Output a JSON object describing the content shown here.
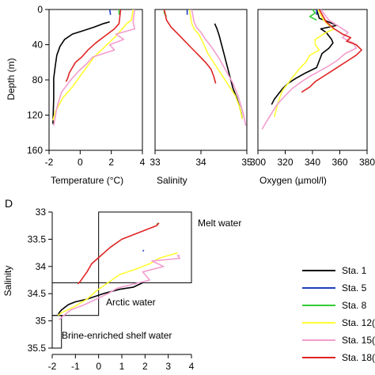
{
  "colors": {
    "sta1": "#000000",
    "sta5": "#1f3fbf",
    "sta8": "#33cc33",
    "sta120": "#ffff33",
    "sta150": "#f29ecf",
    "sta180": "#e02424"
  },
  "chart_data": [
    {
      "type": "line",
      "panel": "temperature",
      "xlabel": "Temperature (°C)",
      "ylabel": "Depth (m)",
      "xlim": [
        -2,
        4
      ],
      "ylim": [
        0,
        160
      ],
      "y_inverted": true,
      "xticks": [
        "-2",
        "0",
        "2",
        "4"
      ],
      "yticks": [
        "0",
        "40",
        "80",
        "120",
        "160"
      ],
      "series": [
        {
          "key": "sta1",
          "x": [
            1.9,
            1.5,
            0.9,
            0.2,
            -0.5,
            -1.0,
            -1.3,
            -1.5,
            -1.6,
            -1.7,
            -1.7,
            -1.75
          ],
          "y": [
            14,
            16,
            20,
            24,
            28,
            34,
            42,
            52,
            64,
            78,
            100,
            130
          ]
        },
        {
          "key": "sta5",
          "x": [
            1.9,
            1.95
          ],
          "y": [
            0,
            6
          ]
        },
        {
          "key": "sta8",
          "x": [
            2.5,
            2.5
          ],
          "y": [
            0,
            6
          ]
        },
        {
          "key": "sta120",
          "x": [
            3.4,
            3.3,
            3.0,
            2.6,
            2.2,
            1.6,
            0.9,
            0.4,
            -0.1,
            -0.5,
            -1.1,
            -1.6,
            -1.75
          ],
          "y": [
            0,
            12,
            16,
            24,
            32,
            42,
            54,
            66,
            78,
            88,
            100,
            116,
            126
          ]
        },
        {
          "key": "sta150",
          "x": [
            3.5,
            3.4,
            3.5,
            2.3,
            2.8,
            1.9,
            2.2,
            0.8,
            0.4,
            -0.1,
            -0.6,
            -1.2,
            -1.5,
            -1.7
          ],
          "y": [
            0,
            14,
            22,
            28,
            34,
            40,
            46,
            54,
            62,
            70,
            80,
            94,
            112,
            132
          ]
        },
        {
          "key": "sta180",
          "x": [
            2.6,
            2.5,
            2.2,
            1.6,
            1.0,
            0.5,
            0.1,
            -0.3,
            -0.5,
            -0.7,
            -0.8,
            -0.9
          ],
          "y": [
            0,
            16,
            22,
            30,
            38,
            46,
            54,
            60,
            66,
            72,
            78,
            82
          ]
        }
      ]
    },
    {
      "type": "line",
      "panel": "salinity",
      "xlabel": "Salinity",
      "ylim": [
        0,
        160
      ],
      "y_inverted": true,
      "xlim": [
        33,
        35
      ],
      "xticks": [
        "33",
        "34",
        "35"
      ],
      "series": [
        {
          "key": "sta1",
          "x": [
            34.3,
            34.35,
            34.4,
            34.45,
            34.5,
            34.55,
            34.6,
            34.65,
            34.7,
            34.78,
            34.84,
            34.88,
            34.9
          ],
          "y": [
            16,
            22,
            30,
            40,
            50,
            60,
            70,
            80,
            90,
            100,
            110,
            118,
            124
          ]
        },
        {
          "key": "sta5",
          "x": [
            33.7,
            33.7
          ],
          "y": [
            0,
            6
          ]
        },
        {
          "key": "sta8",
          "x": [
            33.2,
            33.2,
            33.25
          ],
          "y": [
            0,
            4,
            8
          ]
        },
        {
          "key": "sta120",
          "x": [
            33.75,
            33.8,
            33.85,
            33.95,
            34.05,
            34.15,
            34.3,
            34.45,
            34.6,
            34.75,
            34.85,
            34.9
          ],
          "y": [
            0,
            16,
            22,
            28,
            38,
            50,
            62,
            74,
            86,
            98,
            112,
            124
          ]
        },
        {
          "key": "sta150",
          "x": [
            33.8,
            33.85,
            33.9,
            34.0,
            34.1,
            34.25,
            34.4,
            34.55,
            34.7,
            34.82,
            34.92,
            34.98
          ],
          "y": [
            0,
            14,
            20,
            26,
            34,
            44,
            56,
            70,
            84,
            100,
            118,
            132
          ]
        },
        {
          "key": "sta180",
          "x": [
            33.2,
            33.25,
            33.35,
            33.5,
            33.65,
            33.8,
            33.95,
            34.1,
            34.22,
            34.28,
            34.32
          ],
          "y": [
            0,
            12,
            20,
            28,
            36,
            44,
            52,
            60,
            68,
            76,
            84
          ]
        }
      ]
    },
    {
      "type": "line",
      "panel": "oxygen",
      "xlabel": "Oxygen (µmol/l)",
      "ylim": [
        0,
        160
      ],
      "y_inverted": true,
      "xlim": [
        300,
        380
      ],
      "xticks": [
        "300",
        "320",
        "340",
        "360",
        "380"
      ],
      "series": [
        {
          "key": "sta1",
          "x": [
            343,
            345,
            358,
            346,
            350,
            352,
            354,
            355,
            352,
            347,
            345,
            343,
            335,
            328,
            322,
            318,
            315,
            312,
            310
          ],
          "y": [
            0,
            10,
            18,
            22,
            26,
            30,
            34,
            38,
            44,
            50,
            58,
            66,
            72,
            78,
            84,
            90,
            96,
            102,
            108
          ]
        },
        {
          "key": "sta5",
          "x": [
            343,
            343
          ],
          "y": [
            0,
            6
          ]
        },
        {
          "key": "sta8",
          "x": [
            340,
            342,
            338,
            343
          ],
          "y": [
            0,
            4,
            8,
            12
          ]
        },
        {
          "key": "sta120",
          "x": [
            344,
            348,
            352,
            356,
            350,
            346,
            342,
            342,
            345,
            338,
            335,
            330,
            326,
            322,
            318,
            316,
            314,
            312
          ],
          "y": [
            0,
            12,
            18,
            22,
            26,
            30,
            34,
            40,
            46,
            52,
            60,
            68,
            76,
            84,
            92,
            100,
            110,
            122
          ]
        },
        {
          "key": "sta150",
          "x": [
            346,
            352,
            360,
            366,
            362,
            370,
            372,
            364,
            358,
            352,
            345,
            338,
            332,
            325,
            320,
            314,
            310,
            306,
            303
          ],
          "y": [
            0,
            12,
            20,
            26,
            32,
            38,
            44,
            50,
            58,
            64,
            70,
            76,
            82,
            90,
            98,
            108,
            118,
            128,
            136
          ]
        },
        {
          "key": "sta180",
          "x": [
            345,
            350,
            356,
            362,
            368,
            365,
            372,
            376,
            372,
            366,
            360,
            354,
            348,
            342,
            338,
            332
          ],
          "y": [
            0,
            14,
            22,
            28,
            32,
            36,
            40,
            46,
            52,
            58,
            64,
            70,
            76,
            82,
            88,
            94
          ]
        }
      ]
    },
    {
      "type": "line",
      "panel": "ts",
      "panel_label": "D",
      "xlabel": "",
      "ylabel": "Salinity",
      "xlim": [
        -2,
        4
      ],
      "ylim": [
        33,
        35.5
      ],
      "y_inverted": true,
      "xticks": [
        "-2",
        "-1",
        "0",
        "1",
        "2",
        "3",
        "4"
      ],
      "yticks": [
        "33",
        "33.5",
        "34",
        "34.5",
        "35",
        "35.5"
      ],
      "boxes": [
        {
          "label": "Melt water",
          "x": [
            0,
            4
          ],
          "y": [
            33.0,
            34.3
          ]
        },
        {
          "label": "Arctic water",
          "x": [
            -2,
            0
          ],
          "y": [
            34.3,
            34.9
          ]
        },
        {
          "label": "Brine-enriched shelf water",
          "x": [
            -2,
            -1.6
          ],
          "y": [
            34.9,
            35.5
          ]
        }
      ],
      "series": [
        {
          "key": "sta1",
          "x": [
            -1.75,
            -1.7,
            -1.6,
            -1.3,
            -1.0,
            -0.5,
            0.2,
            0.9,
            1.5,
            1.9
          ],
          "y": [
            34.9,
            34.85,
            34.8,
            34.7,
            34.65,
            34.6,
            34.5,
            34.42,
            34.38,
            34.3
          ]
        },
        {
          "key": "sta5",
          "x": [
            1.95,
            1.9
          ],
          "y": [
            33.7,
            33.72
          ]
        },
        {
          "key": "sta8",
          "x": [
            2.5,
            2.55
          ],
          "y": [
            33.25,
            33.2
          ]
        },
        {
          "key": "sta120",
          "x": [
            -1.75,
            -1.6,
            -1.1,
            -0.5,
            -0.1,
            0.4,
            0.9,
            1.6,
            2.2,
            2.6,
            3.0,
            3.4
          ],
          "y": [
            34.9,
            34.85,
            34.75,
            34.6,
            34.45,
            34.3,
            34.15,
            34.05,
            33.95,
            33.85,
            33.8,
            33.75
          ]
        },
        {
          "key": "sta150",
          "x": [
            -1.7,
            -1.5,
            -1.2,
            -0.6,
            -0.1,
            0.4,
            0.8,
            2.2,
            1.9,
            2.8,
            2.3,
            3.5,
            3.4,
            3.5
          ],
          "y": [
            34.98,
            34.9,
            34.8,
            34.7,
            34.6,
            34.5,
            34.4,
            34.25,
            34.1,
            34.0,
            33.9,
            33.85,
            33.8,
            33.8
          ]
        },
        {
          "key": "sta180",
          "x": [
            -0.9,
            -0.8,
            -0.7,
            -0.5,
            -0.3,
            0.1,
            0.5,
            1.0,
            1.6,
            2.2,
            2.5,
            2.6
          ],
          "y": [
            34.32,
            34.28,
            34.22,
            34.1,
            33.95,
            33.8,
            33.65,
            33.5,
            33.4,
            33.3,
            33.25,
            33.2
          ]
        }
      ]
    }
  ],
  "legend": {
    "placement": "right",
    "entries": [
      {
        "key": "sta1",
        "label": "Sta. 1"
      },
      {
        "key": "sta5",
        "label": "Sta. 5"
      },
      {
        "key": "sta8",
        "label": "Sta. 8"
      },
      {
        "key": "sta120",
        "label": "Sta. 12("
      },
      {
        "key": "sta150",
        "label": "Sta. 15("
      },
      {
        "key": "sta180",
        "label": "Sta. 18("
      }
    ]
  }
}
